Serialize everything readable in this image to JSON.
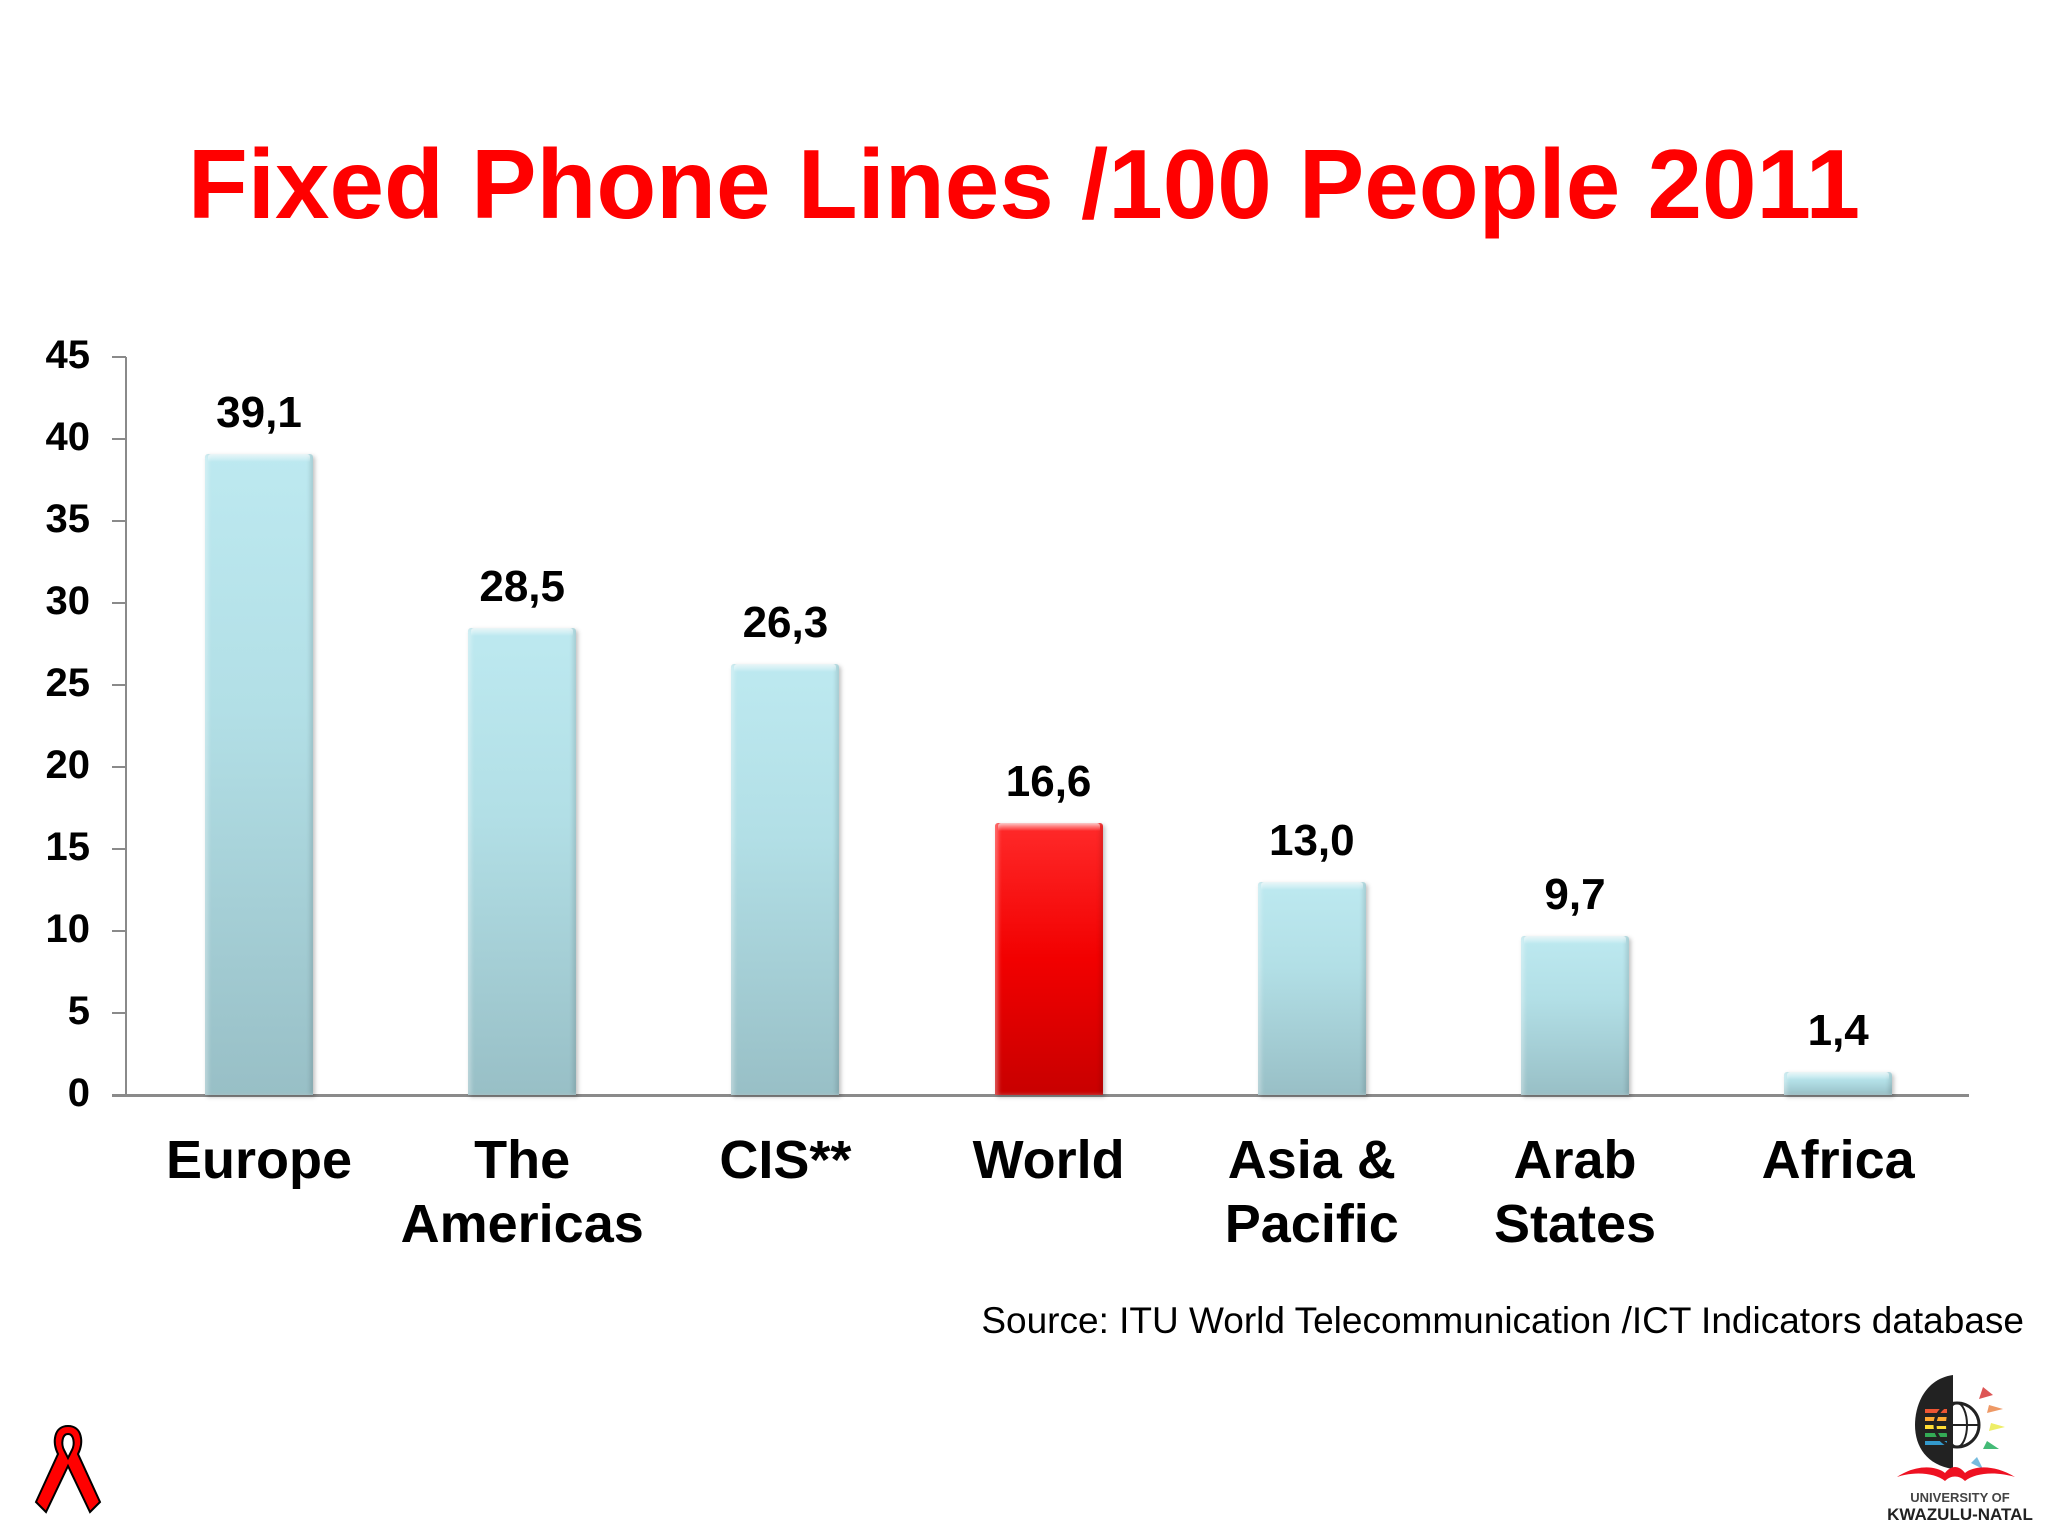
{
  "slide": {
    "title": "Fixed Phone Lines /100 People 2011",
    "source": "Source:  ITU World Telecommunication /ICT Indicators database",
    "logo": {
      "line1": "UNIVERSITY OF",
      "line2": "KWAZULU-NATAL"
    },
    "icons": [
      "red-ribbon-icon",
      "ukzn-logo-icon"
    ]
  },
  "colors": {
    "title": "#ff0000",
    "bar_default": "#b2dfe6",
    "bar_highlight": "#ff0000",
    "axis": "#8a8a8a"
  },
  "y_ticks": [
    "45",
    "40",
    "35",
    "30",
    "25",
    "20",
    "15",
    "10",
    "5",
    "0"
  ],
  "bars": [
    {
      "label_line1": "Europe",
      "label_line2": "",
      "value_label": "39,1",
      "value": 39.1,
      "highlight": false
    },
    {
      "label_line1": "The",
      "label_line2": "Americas",
      "value_label": "28,5",
      "value": 28.5,
      "highlight": false
    },
    {
      "label_line1": "CIS**",
      "label_line2": "",
      "value_label": "26,3",
      "value": 26.3,
      "highlight": false
    },
    {
      "label_line1": "World",
      "label_line2": "",
      "value_label": "16,6",
      "value": 16.6,
      "highlight": true
    },
    {
      "label_line1": "Asia &",
      "label_line2": "Pacific",
      "value_label": "13,0",
      "value": 13.0,
      "highlight": false
    },
    {
      "label_line1": "Arab",
      "label_line2": "States",
      "value_label": "9,7",
      "value": 9.7,
      "highlight": false
    },
    {
      "label_line1": "Africa",
      "label_line2": "",
      "value_label": "1,4",
      "value": 1.4,
      "highlight": false
    }
  ],
  "chart_data": {
    "type": "bar",
    "title": "Fixed Phone Lines /100 People 2011",
    "categories": [
      "Europe",
      "The Americas",
      "CIS**",
      "World",
      "Asia & Pacific",
      "Arab States",
      "Africa"
    ],
    "values": [
      39.1,
      28.5,
      26.3,
      16.6,
      13.0,
      9.7,
      1.4
    ],
    "data_labels": [
      "39,1",
      "28,5",
      "26,3",
      "16,6",
      "13,0",
      "9,7",
      "1,4"
    ],
    "highlighted_category": "World",
    "xlabel": "",
    "ylabel": "",
    "ylim": [
      0,
      45
    ],
    "yticks": [
      0,
      5,
      10,
      15,
      20,
      25,
      30,
      35,
      40,
      45
    ],
    "grid": false,
    "legend": null,
    "annotations": [
      "Source:  ITU World Telecommunication /ICT Indicators database"
    ]
  }
}
